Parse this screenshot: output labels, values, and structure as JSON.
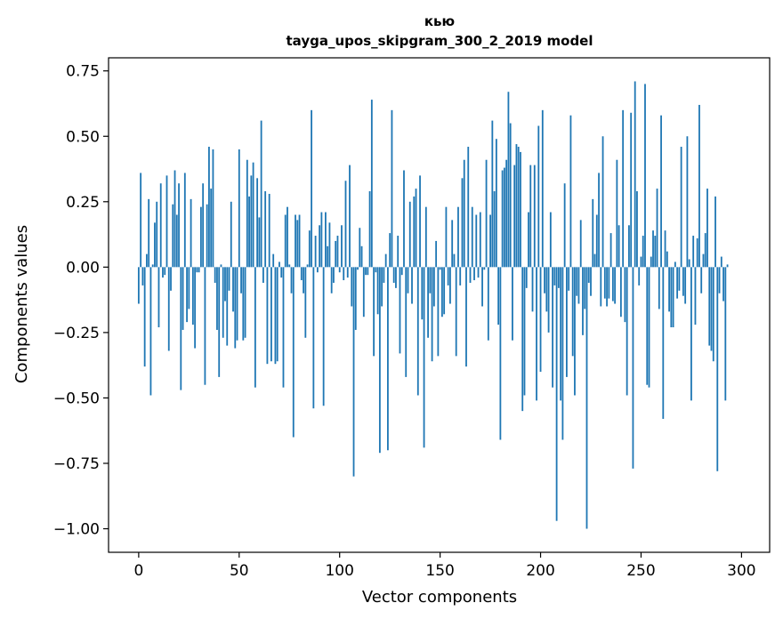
{
  "chart_data": {
    "type": "bar",
    "title": "кью",
    "subtitle": "tayga_upos_skipgram_300_2_2019 model",
    "xlabel": "Vector components",
    "ylabel": "Components values",
    "xlim": [
      -15,
      314
    ],
    "ylim": [
      -1.09,
      0.8
    ],
    "xticks": [
      0,
      50,
      100,
      150,
      200,
      250,
      300
    ],
    "xtick_labels": [
      "0",
      "50",
      "100",
      "150",
      "200",
      "250",
      "300"
    ],
    "yticks": [
      0.75,
      0.5,
      0.25,
      0.0,
      -0.25,
      -0.5,
      -0.75,
      -1.0
    ],
    "ytick_labels": [
      "0.75",
      "0.50",
      "0.25",
      "0.00",
      "−0.25",
      "−0.50",
      "−0.75",
      "−1.00"
    ],
    "grid": false,
    "bar_color": "#1f77b4",
    "values": [
      -0.14,
      0.36,
      -0.07,
      -0.38,
      0.05,
      0.26,
      -0.49,
      0.01,
      0.17,
      0.25,
      -0.23,
      0.32,
      -0.04,
      -0.03,
      0.35,
      -0.32,
      -0.09,
      0.24,
      0.37,
      0.2,
      0.32,
      -0.47,
      -0.24,
      0.36,
      -0.21,
      -0.16,
      0.26,
      -0.22,
      -0.31,
      -0.02,
      -0.02,
      0.23,
      0.32,
      -0.45,
      0.24,
      0.46,
      0.3,
      0.45,
      -0.06,
      -0.24,
      -0.42,
      0.01,
      -0.27,
      -0.13,
      -0.3,
      -0.09,
      0.25,
      -0.17,
      -0.31,
      -0.28,
      0.45,
      -0.1,
      -0.28,
      -0.27,
      0.41,
      0.27,
      0.35,
      0.4,
      -0.46,
      0.34,
      0.19,
      0.56,
      -0.06,
      0.29,
      -0.37,
      0.28,
      -0.36,
      0.05,
      -0.37,
      -0.36,
      0.02,
      -0.04,
      -0.46,
      0.2,
      0.23,
      0.01,
      -0.1,
      -0.65,
      0.2,
      0.18,
      0.2,
      -0.05,
      -0.1,
      -0.27,
      0.01,
      0.14,
      0.6,
      -0.54,
      0.12,
      -0.02,
      0.16,
      0.21,
      -0.53,
      0.21,
      0.08,
      0.17,
      -0.1,
      -0.06,
      0.1,
      0.12,
      -0.02,
      0.16,
      -0.05,
      0.33,
      -0.04,
      0.39,
      -0.15,
      -0.8,
      -0.24,
      -0.01,
      0.15,
      0.08,
      -0.19,
      -0.03,
      -0.03,
      0.29,
      0.64,
      -0.34,
      -0.02,
      -0.18,
      -0.71,
      -0.15,
      -0.06,
      0.05,
      -0.7,
      0.13,
      0.6,
      -0.06,
      -0.08,
      0.12,
      -0.33,
      -0.03,
      0.37,
      -0.42,
      -0.1,
      0.25,
      -0.14,
      0.27,
      0.3,
      -0.49,
      0.35,
      -0.2,
      -0.69,
      0.23,
      -0.27,
      -0.1,
      -0.36,
      -0.15,
      0.1,
      -0.34,
      -0.01,
      -0.19,
      -0.18,
      0.23,
      -0.07,
      -0.14,
      0.18,
      0.05,
      -0.34,
      0.23,
      -0.07,
      0.34,
      0.41,
      -0.38,
      0.46,
      -0.06,
      0.23,
      -0.05,
      0.2,
      -0.04,
      0.21,
      -0.15,
      -0.01,
      0.41,
      -0.28,
      0.2,
      0.56,
      0.29,
      0.49,
      -0.22,
      -0.66,
      0.37,
      0.38,
      0.41,
      0.67,
      0.55,
      -0.28,
      0.39,
      0.47,
      0.46,
      0.44,
      -0.55,
      -0.49,
      -0.08,
      0.21,
      0.39,
      -0.17,
      0.39,
      -0.51,
      0.54,
      -0.4,
      0.6,
      -0.1,
      -0.17,
      -0.25,
      0.21,
      -0.46,
      -0.07,
      -0.97,
      -0.08,
      -0.51,
      -0.66,
      0.32,
      -0.42,
      -0.09,
      0.58,
      -0.34,
      -0.49,
      -0.11,
      -0.14,
      0.18,
      -0.26,
      -0.16,
      -1.0,
      -0.06,
      -0.11,
      0.26,
      0.05,
      0.2,
      0.36,
      -0.15,
      0.5,
      -0.12,
      -0.15,
      -0.12,
      0.13,
      -0.13,
      -0.14,
      0.41,
      0.16,
      -0.19,
      0.6,
      -0.21,
      -0.49,
      0.16,
      0.59,
      -0.77,
      0.71,
      0.29,
      -0.07,
      0.04,
      0.12,
      0.7,
      -0.45,
      -0.46,
      0.04,
      0.14,
      0.12,
      0.3,
      -0.16,
      0.58,
      -0.58,
      0.14,
      0.06,
      -0.17,
      -0.23,
      -0.23,
      0.02,
      -0.12,
      -0.09,
      0.46,
      -0.11,
      -0.14,
      0.5,
      0.03,
      -0.51,
      0.12,
      -0.22,
      0.11,
      0.62,
      -0.1,
      0.05,
      0.13,
      0.3,
      -0.3,
      -0.32,
      -0.36,
      0.27,
      -0.78,
      -0.1,
      0.04,
      -0.13,
      -0.51,
      0.01
    ]
  }
}
